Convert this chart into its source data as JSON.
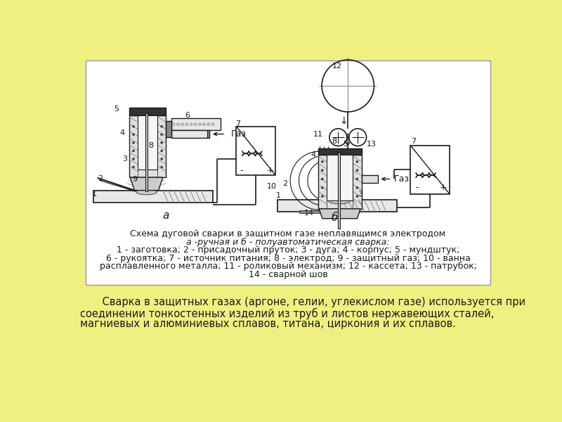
{
  "bg_color": "#f0f080",
  "panel_bg": "#ffffff",
  "lc": "#1a1a1a",
  "title_line1": "Схема дуговой сварки в защитном газе неплавящимся электродом",
  "title_line2": "а -ручная и б - полуавтоматическая сварка:",
  "legend_line1": "1 - заготовка; 2 - присадочный пруток; 3 - дуга; 4 - корпус; 5 - мундштук;",
  "legend_line2": "6 - рукоятка; 7 - источник питания; 8 - электрод; 9 - защитный газ; 10 - ванна",
  "legend_line3": "расплавленного металла; 11 - роликовый механизм; 12 - кассета; 13 - патрубок;",
  "legend_line4": "14 - сварной шов",
  "bottom_text_line1": "    Сварка в защитных газах (аргоне, гелии, углекислом газе) используется при",
  "bottom_text_line2": "соединении тонкостенных изделий из труб и листов нержавеющих сталей,",
  "bottom_text_line3": "магниевых и алюминиевых сплавов, титана, циркония и их сплавов."
}
